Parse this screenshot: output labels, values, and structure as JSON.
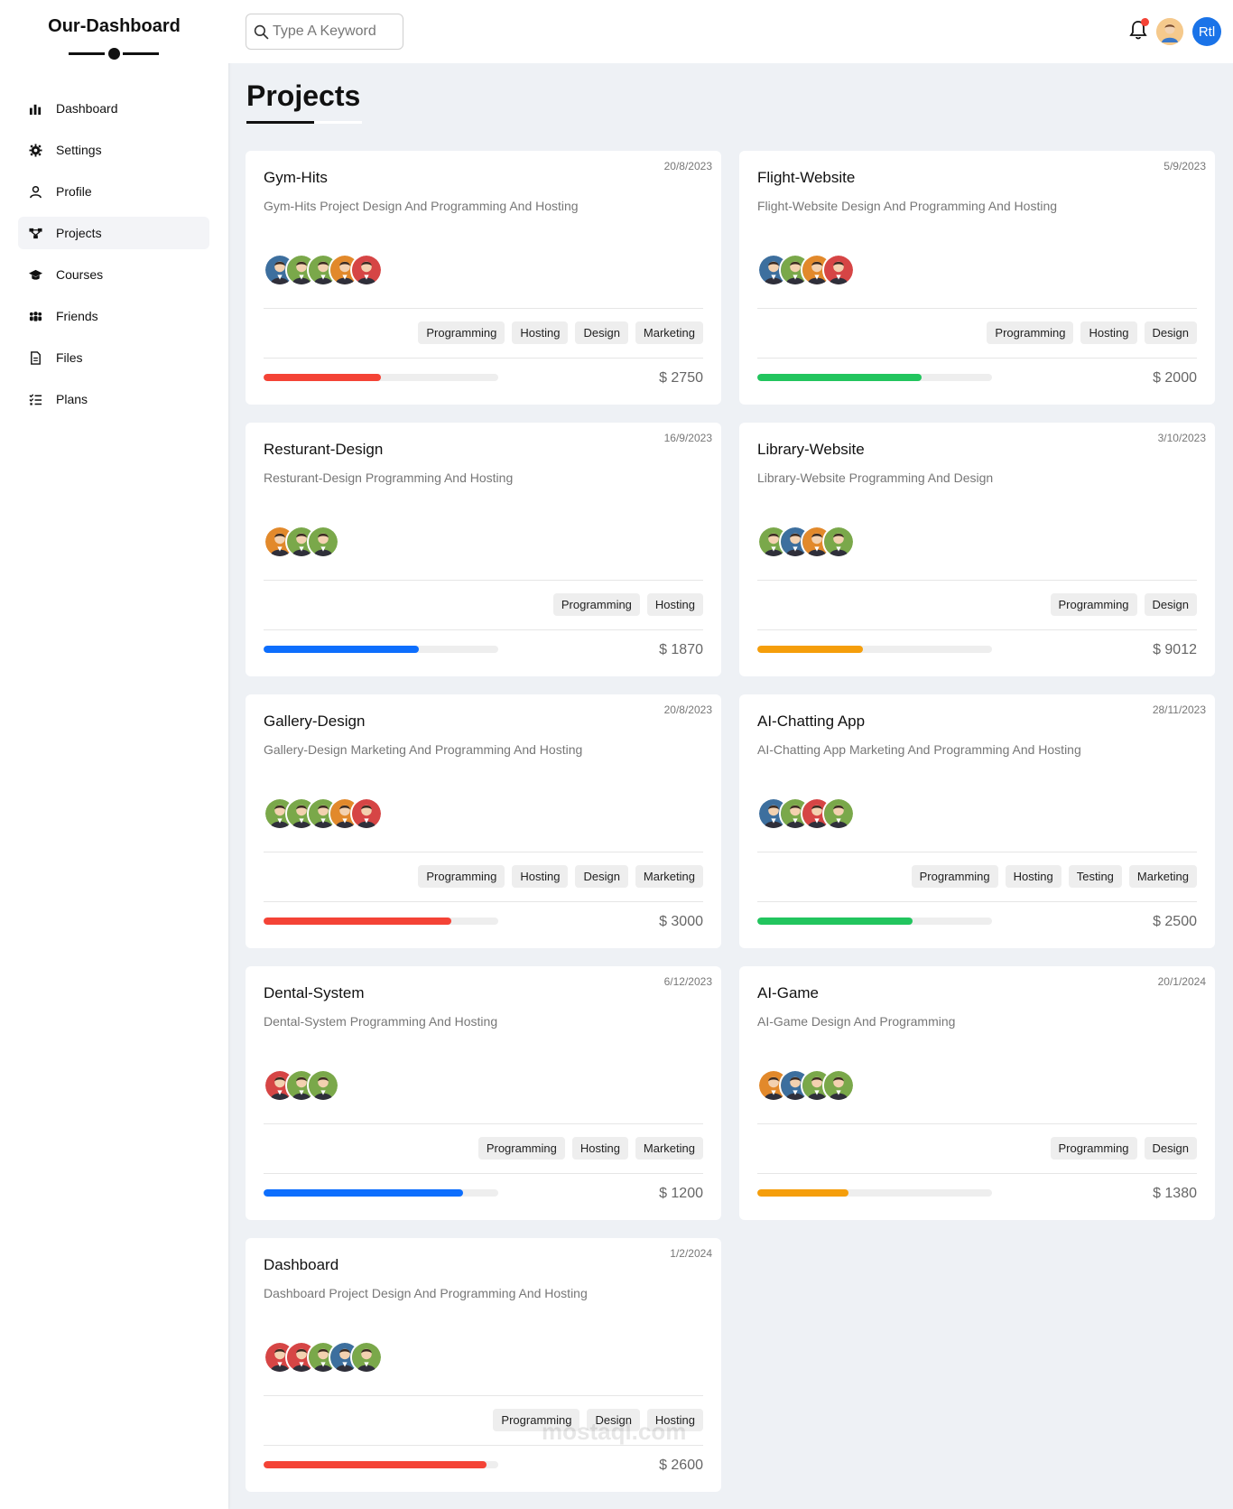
{
  "brand": "Our-Dashboard",
  "sidebar": {
    "items": [
      {
        "label": "Dashboard",
        "icon": "chart-bar-icon",
        "active": false
      },
      {
        "label": "Settings",
        "icon": "gear-icon",
        "active": false
      },
      {
        "label": "Profile",
        "icon": "user-icon",
        "active": false
      },
      {
        "label": "Projects",
        "icon": "diagram-project-icon",
        "active": true
      },
      {
        "label": "Courses",
        "icon": "graduation-cap-icon",
        "active": false
      },
      {
        "label": "Friends",
        "icon": "users-icon",
        "active": false
      },
      {
        "label": "Files",
        "icon": "file-icon",
        "active": false
      },
      {
        "label": "Plans",
        "icon": "list-check-icon",
        "active": false
      }
    ]
  },
  "header": {
    "search_placeholder": "Type A Keyword",
    "rtl_label": "Rtl"
  },
  "page": {
    "title": "Projects"
  },
  "colors": {
    "red": "#f44336",
    "green": "#22c55e",
    "blue": "#0d6efd",
    "orange": "#f59e0b"
  },
  "projects": [
    {
      "name": "Gym-Hits",
      "date": "20/8/2023",
      "desc": "Gym-Hits Project Design And Programming And Hosting",
      "team": [
        "blue",
        "green",
        "green",
        "orange",
        "red"
      ],
      "tags": [
        "Programming",
        "Hosting",
        "Design",
        "Marketing"
      ],
      "progress": 0.5,
      "color": "red",
      "price": "$ 2750"
    },
    {
      "name": "Flight-Website",
      "date": "5/9/2023",
      "desc": "Flight-Website Design And Programming And Hosting",
      "team": [
        "blue",
        "green",
        "orange",
        "red"
      ],
      "tags": [
        "Programming",
        "Hosting",
        "Design"
      ],
      "progress": 0.7,
      "color": "green",
      "price": "$ 2000"
    },
    {
      "name": "Resturant-Design",
      "date": "16/9/2023",
      "desc": "Resturant-Design Programming And Hosting",
      "team": [
        "orange",
        "green",
        "green"
      ],
      "tags": [
        "Programming",
        "Hosting"
      ],
      "progress": 0.66,
      "color": "blue",
      "price": "$ 1870"
    },
    {
      "name": "Library-Website",
      "date": "3/10/2023",
      "desc": "Library-Website Programming And Design",
      "team": [
        "green",
        "blue",
        "orange",
        "green"
      ],
      "tags": [
        "Programming",
        "Design"
      ],
      "progress": 0.45,
      "color": "orange",
      "price": "$ 9012"
    },
    {
      "name": "Gallery-Design",
      "date": "20/8/2023",
      "desc": "Gallery-Design Marketing And Programming And Hosting",
      "team": [
        "green",
        "green",
        "green",
        "orange",
        "red"
      ],
      "tags": [
        "Programming",
        "Hosting",
        "Design",
        "Marketing"
      ],
      "progress": 0.8,
      "color": "red",
      "price": "$ 3000"
    },
    {
      "name": "AI-Chatting App",
      "date": "28/11/2023",
      "desc": "AI-Chatting App Marketing And Programming And Hosting",
      "team": [
        "blue",
        "green",
        "red",
        "green"
      ],
      "tags": [
        "Programming",
        "Hosting",
        "Testing",
        "Marketing"
      ],
      "progress": 0.66,
      "color": "green",
      "price": "$ 2500"
    },
    {
      "name": "Dental-System",
      "date": "6/12/2023",
      "desc": "Dental-System Programming And Hosting",
      "team": [
        "red",
        "green",
        "green"
      ],
      "tags": [
        "Programming",
        "Hosting",
        "Marketing"
      ],
      "progress": 0.85,
      "color": "blue",
      "price": "$ 1200"
    },
    {
      "name": "AI-Game",
      "date": "20/1/2024",
      "desc": "AI-Game Design And Programming",
      "team": [
        "orange",
        "blue",
        "green",
        "green"
      ],
      "tags": [
        "Programming",
        "Design"
      ],
      "progress": 0.39,
      "color": "orange",
      "price": "$ 1380"
    },
    {
      "name": "Dashboard",
      "date": "1/2/2024",
      "desc": "Dashboard Project Design And Programming And Hosting",
      "team": [
        "red",
        "red",
        "green",
        "blue",
        "green"
      ],
      "tags": [
        "Programming",
        "Design",
        "Hosting"
      ],
      "progress": 0.95,
      "color": "red",
      "price": "$ 2600"
    }
  ],
  "watermark": "mostaql.com"
}
